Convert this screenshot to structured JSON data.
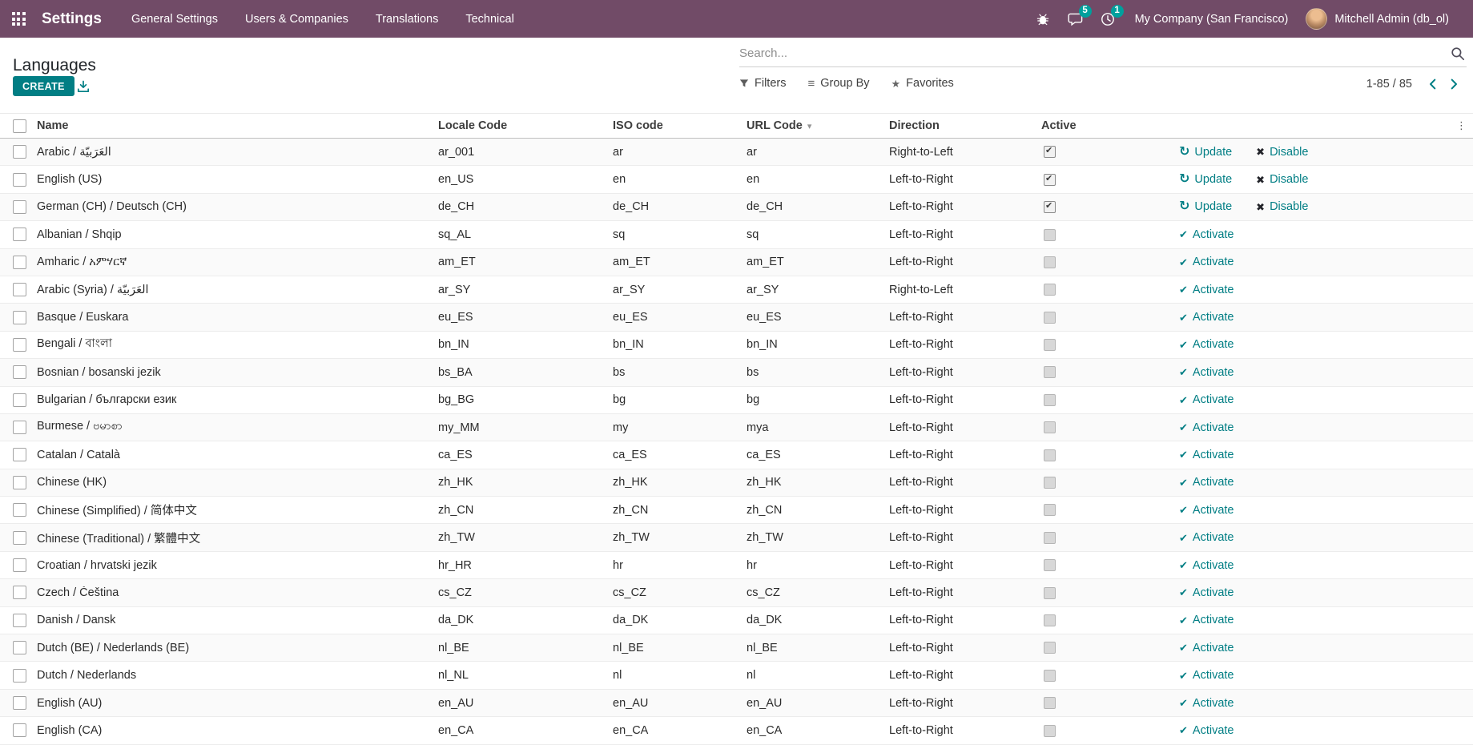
{
  "topbar": {
    "app_name": "Settings",
    "menu_items": [
      "General Settings",
      "Users & Companies",
      "Translations",
      "Technical"
    ],
    "messages_badge": "5",
    "activities_badge": "1",
    "company": "My Company (San Francisco)",
    "user": "Mitchell Admin (db_ol)"
  },
  "control_panel": {
    "title": "Languages",
    "create_label": "CREATE",
    "search_placeholder": "Search...",
    "filters_label": "Filters",
    "group_by_label": "Group By",
    "favorites_label": "Favorites",
    "pager_text": "1-85 / 85"
  },
  "icons": {
    "update": "↻",
    "disable": "✖",
    "activate": "✔",
    "group_by": "≡",
    "favorites": "★",
    "sort_caret": "▾",
    "columns_toggle": "⋮"
  },
  "colors": {
    "topbar_bg": "#714B67",
    "primary": "#017e84",
    "badge": "#00A09D"
  },
  "table": {
    "columns": {
      "name": "Name",
      "locale": "Locale Code",
      "iso": "ISO code",
      "url": "URL Code",
      "direction": "Direction",
      "active": "Active"
    },
    "actions": {
      "update": "Update",
      "disable": "Disable",
      "activate": "Activate"
    },
    "rows": [
      {
        "name": "Arabic / الْعَرَبيّة",
        "locale": "ar_001",
        "iso": "ar",
        "url": "ar",
        "direction": "Right-to-Left",
        "active": true
      },
      {
        "name": "English (US)",
        "locale": "en_US",
        "iso": "en",
        "url": "en",
        "direction": "Left-to-Right",
        "active": true
      },
      {
        "name": "German (CH) / Deutsch (CH)",
        "locale": "de_CH",
        "iso": "de_CH",
        "url": "de_CH",
        "direction": "Left-to-Right",
        "active": true
      },
      {
        "name": "Albanian / Shqip",
        "locale": "sq_AL",
        "iso": "sq",
        "url": "sq",
        "direction": "Left-to-Right",
        "active": false
      },
      {
        "name": "Amharic / አምሃርኛ",
        "locale": "am_ET",
        "iso": "am_ET",
        "url": "am_ET",
        "direction": "Left-to-Right",
        "active": false
      },
      {
        "name": "Arabic (Syria) / الْعَرَبيّة",
        "locale": "ar_SY",
        "iso": "ar_SY",
        "url": "ar_SY",
        "direction": "Right-to-Left",
        "active": false
      },
      {
        "name": "Basque / Euskara",
        "locale": "eu_ES",
        "iso": "eu_ES",
        "url": "eu_ES",
        "direction": "Left-to-Right",
        "active": false
      },
      {
        "name": "Bengali / বাংলা",
        "locale": "bn_IN",
        "iso": "bn_IN",
        "url": "bn_IN",
        "direction": "Left-to-Right",
        "active": false
      },
      {
        "name": "Bosnian / bosanski jezik",
        "locale": "bs_BA",
        "iso": "bs",
        "url": "bs",
        "direction": "Left-to-Right",
        "active": false
      },
      {
        "name": "Bulgarian / български език",
        "locale": "bg_BG",
        "iso": "bg",
        "url": "bg",
        "direction": "Left-to-Right",
        "active": false
      },
      {
        "name": "Burmese / ဗမာစာ",
        "locale": "my_MM",
        "iso": "my",
        "url": "mya",
        "direction": "Left-to-Right",
        "active": false
      },
      {
        "name": "Catalan / Català",
        "locale": "ca_ES",
        "iso": "ca_ES",
        "url": "ca_ES",
        "direction": "Left-to-Right",
        "active": false
      },
      {
        "name": "Chinese (HK)",
        "locale": "zh_HK",
        "iso": "zh_HK",
        "url": "zh_HK",
        "direction": "Left-to-Right",
        "active": false
      },
      {
        "name": "Chinese (Simplified) / 简体中文",
        "locale": "zh_CN",
        "iso": "zh_CN",
        "url": "zh_CN",
        "direction": "Left-to-Right",
        "active": false
      },
      {
        "name": "Chinese (Traditional) / 繁體中文",
        "locale": "zh_TW",
        "iso": "zh_TW",
        "url": "zh_TW",
        "direction": "Left-to-Right",
        "active": false
      },
      {
        "name": "Croatian / hrvatski jezik",
        "locale": "hr_HR",
        "iso": "hr",
        "url": "hr",
        "direction": "Left-to-Right",
        "active": false
      },
      {
        "name": "Czech / Čeština",
        "locale": "cs_CZ",
        "iso": "cs_CZ",
        "url": "cs_CZ",
        "direction": "Left-to-Right",
        "active": false
      },
      {
        "name": "Danish / Dansk",
        "locale": "da_DK",
        "iso": "da_DK",
        "url": "da_DK",
        "direction": "Left-to-Right",
        "active": false
      },
      {
        "name": "Dutch (BE) / Nederlands (BE)",
        "locale": "nl_BE",
        "iso": "nl_BE",
        "url": "nl_BE",
        "direction": "Left-to-Right",
        "active": false
      },
      {
        "name": "Dutch / Nederlands",
        "locale": "nl_NL",
        "iso": "nl",
        "url": "nl",
        "direction": "Left-to-Right",
        "active": false
      },
      {
        "name": "English (AU)",
        "locale": "en_AU",
        "iso": "en_AU",
        "url": "en_AU",
        "direction": "Left-to-Right",
        "active": false
      },
      {
        "name": "English (CA)",
        "locale": "en_CA",
        "iso": "en_CA",
        "url": "en_CA",
        "direction": "Left-to-Right",
        "active": false
      }
    ]
  }
}
